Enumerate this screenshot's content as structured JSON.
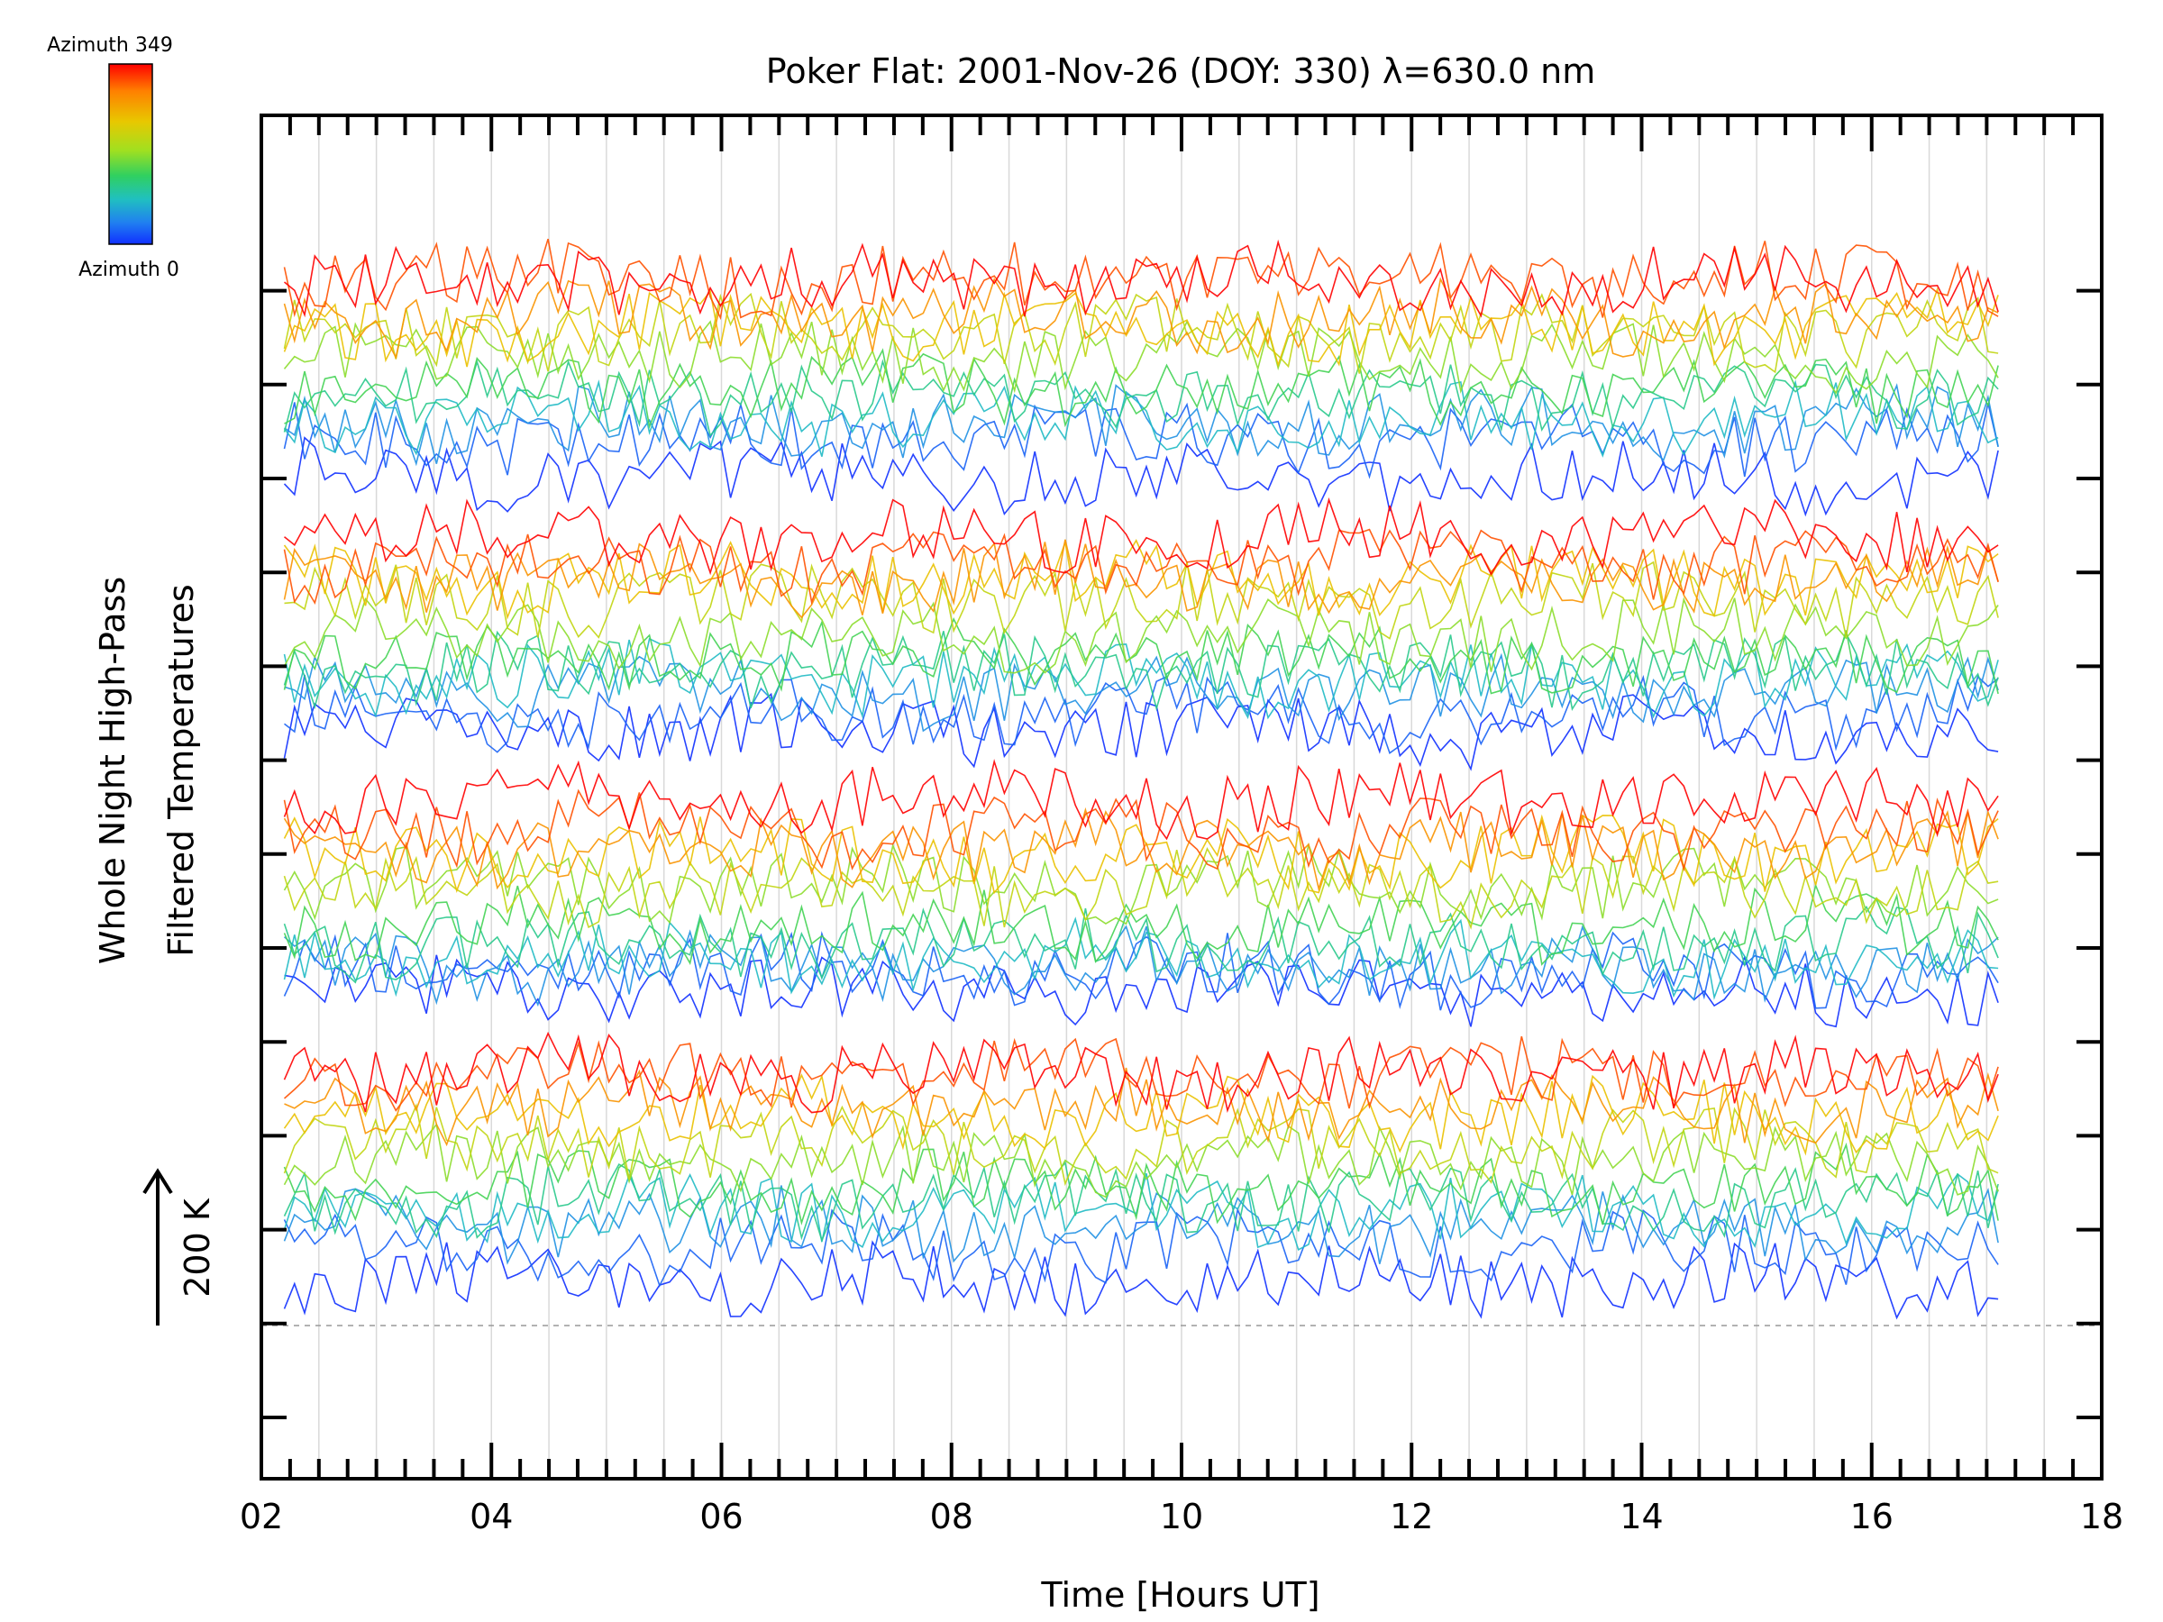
{
  "chart_data": {
    "type": "line",
    "title": "Poker Flat: 2001-Nov-26 (DOY: 330) λ=630.0 nm",
    "xlabel": "Time [Hours UT]",
    "ylabel_line1": "Whole Night High-Pass",
    "ylabel_line2": "Filtered Temperatures",
    "scale_label": "200 K",
    "xlim": [
      2,
      18
    ],
    "x_ticks": [
      "02",
      "04",
      "06",
      "08",
      "10",
      "12",
      "14",
      "16",
      "18"
    ],
    "x_start": 2.2,
    "x_end": 17.1,
    "n_series": 48,
    "colorbar": {
      "top_label": "Azimuth 349",
      "bottom_label": "Azimuth 0",
      "colors": [
        "#ff0000",
        "#ff8000",
        "#e8c800",
        "#a0e020",
        "#30d060",
        "#20c0c0",
        "#2080f0",
        "#1030ff"
      ]
    },
    "grid": true,
    "baseline_dashed": true
  }
}
